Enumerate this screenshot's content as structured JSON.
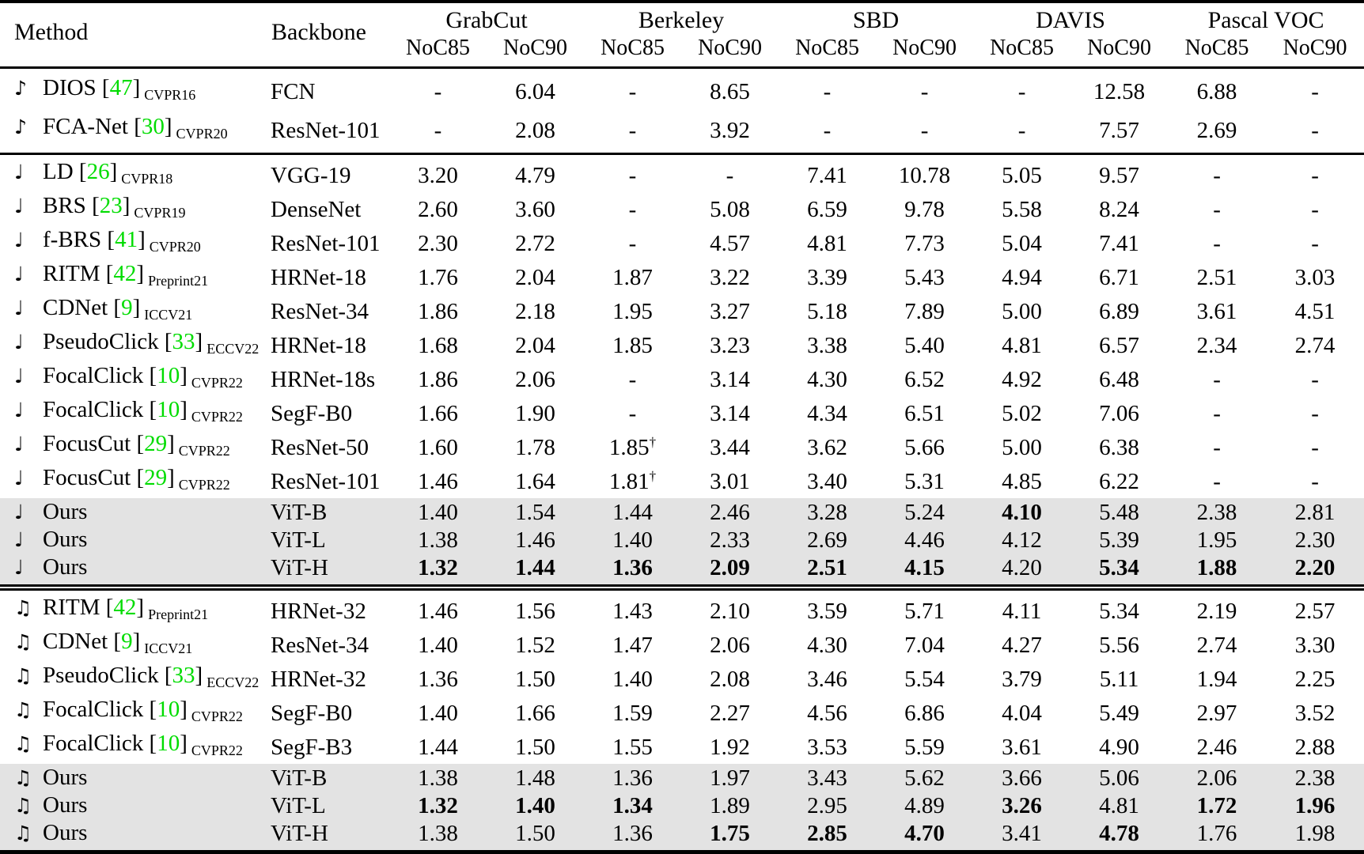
{
  "colors": {
    "citation_green": "#00dc00",
    "highlight_gray": "#e3e3e3",
    "rule_black": "#000000"
  },
  "table": {
    "headers": {
      "method": "Method",
      "backbone": "Backbone"
    },
    "groups": [
      {
        "name": "GrabCut",
        "subs": [
          "NoC85",
          "NoC90"
        ]
      },
      {
        "name": "Berkeley",
        "subs": [
          "NoC85",
          "NoC90"
        ]
      },
      {
        "name": "SBD",
        "subs": [
          "NoC85",
          "NoC90"
        ]
      },
      {
        "name": "DAVIS",
        "subs": [
          "NoC85",
          "NoC90"
        ]
      },
      {
        "name": "Pascal VOC",
        "subs": [
          "NoC85",
          "NoC90"
        ]
      }
    ],
    "sections": [
      {
        "note_glyph": "♪",
        "note_name": "eighth-note-icon",
        "rule_after": "single",
        "rows": [
          {
            "method": "DIOS",
            "cite": "47",
            "venue": "CVPR16",
            "backbone": "FCN",
            "highlight": false,
            "bold": [],
            "values": [
              "-",
              "6.04",
              "-",
              "8.65",
              "-",
              "-",
              "-",
              "12.58",
              "6.88",
              "-"
            ]
          },
          {
            "method": "FCA-Net",
            "cite": "30",
            "venue": "CVPR20",
            "backbone": "ResNet-101",
            "highlight": false,
            "bold": [],
            "values": [
              "-",
              "2.08",
              "-",
              "3.92",
              "-",
              "-",
              "-",
              "7.57",
              "2.69",
              "-"
            ]
          }
        ]
      },
      {
        "note_glyph": "♩",
        "note_name": "quarter-note-icon",
        "rule_after": "double",
        "rows": [
          {
            "method": "LD",
            "cite": "26",
            "venue": "CVPR18",
            "backbone": "VGG-19",
            "highlight": false,
            "bold": [],
            "values": [
              "3.20",
              "4.79",
              "-",
              "-",
              "7.41",
              "10.78",
              "5.05",
              "9.57",
              "-",
              "-"
            ]
          },
          {
            "method": "BRS",
            "cite": "23",
            "venue": "CVPR19",
            "backbone": "DenseNet",
            "highlight": false,
            "bold": [],
            "values": [
              "2.60",
              "3.60",
              "-",
              "5.08",
              "6.59",
              "9.78",
              "5.58",
              "8.24",
              "-",
              "-"
            ]
          },
          {
            "method": "f-BRS",
            "cite": "41",
            "venue": "CVPR20",
            "backbone": "ResNet-101",
            "highlight": false,
            "bold": [],
            "values": [
              "2.30",
              "2.72",
              "-",
              "4.57",
              "4.81",
              "7.73",
              "5.04",
              "7.41",
              "-",
              "-"
            ]
          },
          {
            "method": "RITM",
            "cite": "42",
            "venue": "Preprint21",
            "backbone": "HRNet-18",
            "highlight": false,
            "bold": [],
            "values": [
              "1.76",
              "2.04",
              "1.87",
              "3.22",
              "3.39",
              "5.43",
              "4.94",
              "6.71",
              "2.51",
              "3.03"
            ]
          },
          {
            "method": "CDNet",
            "cite": "9",
            "venue": "ICCV21",
            "backbone": "ResNet-34",
            "highlight": false,
            "bold": [],
            "values": [
              "1.86",
              "2.18",
              "1.95",
              "3.27",
              "5.18",
              "7.89",
              "5.00",
              "6.89",
              "3.61",
              "4.51"
            ]
          },
          {
            "method": "PseudoClick",
            "cite": "33",
            "venue": "ECCV22",
            "backbone": "HRNet-18",
            "highlight": false,
            "bold": [],
            "values": [
              "1.68",
              "2.04",
              "1.85",
              "3.23",
              "3.38",
              "5.40",
              "4.81",
              "6.57",
              "2.34",
              "2.74"
            ]
          },
          {
            "method": "FocalClick",
            "cite": "10",
            "venue": "CVPR22",
            "backbone": "HRNet-18s",
            "highlight": false,
            "bold": [],
            "values": [
              "1.86",
              "2.06",
              "-",
              "3.14",
              "4.30",
              "6.52",
              "4.92",
              "6.48",
              "-",
              "-"
            ]
          },
          {
            "method": "FocalClick",
            "cite": "10",
            "venue": "CVPR22",
            "backbone": "SegF-B0",
            "highlight": false,
            "bold": [],
            "values": [
              "1.66",
              "1.90",
              "-",
              "3.14",
              "4.34",
              "6.51",
              "5.02",
              "7.06",
              "-",
              "-"
            ]
          },
          {
            "method": "FocusCut",
            "cite": "29",
            "venue": "CVPR22",
            "backbone": "ResNet-50",
            "highlight": false,
            "bold": [],
            "values": [
              "1.60",
              "1.78",
              "1.85†",
              "3.44",
              "3.62",
              "5.66",
              "5.00",
              "6.38",
              "-",
              "-"
            ]
          },
          {
            "method": "FocusCut",
            "cite": "29",
            "venue": "CVPR22",
            "backbone": "ResNet-101",
            "highlight": false,
            "bold": [],
            "values": [
              "1.46",
              "1.64",
              "1.81†",
              "3.01",
              "3.40",
              "5.31",
              "4.85",
              "6.22",
              "-",
              "-"
            ]
          },
          {
            "method": "Ours",
            "cite": null,
            "venue": null,
            "backbone": "ViT-B",
            "highlight": true,
            "bold": [
              6
            ],
            "values": [
              "1.40",
              "1.54",
              "1.44",
              "2.46",
              "3.28",
              "5.24",
              "4.10",
              "5.48",
              "2.38",
              "2.81"
            ]
          },
          {
            "method": "Ours",
            "cite": null,
            "venue": null,
            "backbone": "ViT-L",
            "highlight": true,
            "bold": [],
            "values": [
              "1.38",
              "1.46",
              "1.40",
              "2.33",
              "2.69",
              "4.46",
              "4.12",
              "5.39",
              "1.95",
              "2.30"
            ]
          },
          {
            "method": "Ours",
            "cite": null,
            "venue": null,
            "backbone": "ViT-H",
            "highlight": true,
            "bold": [
              0,
              1,
              2,
              3,
              4,
              5,
              7,
              8,
              9
            ],
            "values": [
              "1.32",
              "1.44",
              "1.36",
              "2.09",
              "2.51",
              "4.15",
              "4.20",
              "5.34",
              "1.88",
              "2.20"
            ]
          }
        ]
      },
      {
        "note_glyph": "♫",
        "note_name": "beamed-notes-icon",
        "rule_after": "none",
        "rows": [
          {
            "method": "RITM",
            "cite": "42",
            "venue": "Preprint21",
            "backbone": "HRNet-32",
            "highlight": false,
            "bold": [],
            "values": [
              "1.46",
              "1.56",
              "1.43",
              "2.10",
              "3.59",
              "5.71",
              "4.11",
              "5.34",
              "2.19",
              "2.57"
            ]
          },
          {
            "method": "CDNet",
            "cite": "9",
            "venue": "ICCV21",
            "backbone": "ResNet-34",
            "highlight": false,
            "bold": [],
            "values": [
              "1.40",
              "1.52",
              "1.47",
              "2.06",
              "4.30",
              "7.04",
              "4.27",
              "5.56",
              "2.74",
              "3.30"
            ]
          },
          {
            "method": "PseudoClick",
            "cite": "33",
            "venue": "ECCV22",
            "backbone": "HRNet-32",
            "highlight": false,
            "bold": [],
            "values": [
              "1.36",
              "1.50",
              "1.40",
              "2.08",
              "3.46",
              "5.54",
              "3.79",
              "5.11",
              "1.94",
              "2.25"
            ]
          },
          {
            "method": "FocalClick",
            "cite": "10",
            "venue": "CVPR22",
            "backbone": "SegF-B0",
            "highlight": false,
            "bold": [],
            "values": [
              "1.40",
              "1.66",
              "1.59",
              "2.27",
              "4.56",
              "6.86",
              "4.04",
              "5.49",
              "2.97",
              "3.52"
            ]
          },
          {
            "method": "FocalClick",
            "cite": "10",
            "venue": "CVPR22",
            "backbone": "SegF-B3",
            "highlight": false,
            "bold": [],
            "values": [
              "1.44",
              "1.50",
              "1.55",
              "1.92",
              "3.53",
              "5.59",
              "3.61",
              "4.90",
              "2.46",
              "2.88"
            ]
          },
          {
            "method": "Ours",
            "cite": null,
            "venue": null,
            "backbone": "ViT-B",
            "highlight": true,
            "bold": [],
            "values": [
              "1.38",
              "1.48",
              "1.36",
              "1.97",
              "3.43",
              "5.62",
              "3.66",
              "5.06",
              "2.06",
              "2.38"
            ]
          },
          {
            "method": "Ours",
            "cite": null,
            "venue": null,
            "backbone": "ViT-L",
            "highlight": true,
            "bold": [
              0,
              1,
              2,
              6,
              8,
              9
            ],
            "values": [
              "1.32",
              "1.40",
              "1.34",
              "1.89",
              "2.95",
              "4.89",
              "3.26",
              "4.81",
              "1.72",
              "1.96"
            ]
          },
          {
            "method": "Ours",
            "cite": null,
            "venue": null,
            "backbone": "ViT-H",
            "highlight": true,
            "bold": [
              3,
              4,
              5,
              7
            ],
            "values": [
              "1.38",
              "1.50",
              "1.36",
              "1.75",
              "2.85",
              "4.70",
              "3.41",
              "4.78",
              "1.76",
              "1.98"
            ]
          }
        ]
      }
    ]
  }
}
